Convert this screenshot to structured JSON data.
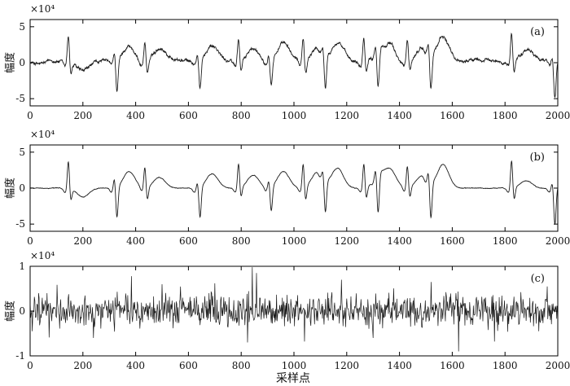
{
  "figure": {
    "xlabel": "采样点",
    "exponent_text": "×10⁴",
    "line_color": "#1a1a1a",
    "axis_color": "#000000"
  },
  "chart_data": [
    {
      "type": "line",
      "panel_tag": "(a)",
      "ylabel": "幅度",
      "x_range": [
        0,
        2000
      ],
      "ylim": [
        -6,
        6
      ],
      "xticks": [
        0,
        200,
        400,
        600,
        800,
        1000,
        1200,
        1400,
        1600,
        1800,
        2000
      ],
      "xtick_labels": [
        "0",
        "200",
        "400",
        "600",
        "800",
        "1000",
        "1200",
        "1400",
        "1600",
        "1800",
        "2000"
      ],
      "yticks": [
        -5,
        0,
        5
      ],
      "ytick_labels": [
        "-5",
        "0",
        "5"
      ],
      "y_scale_note": "×10⁴",
      "noise": 0.25,
      "baseline": [
        [
          0,
          0
        ],
        [
          40,
          -0.2
        ],
        [
          80,
          0.3
        ],
        [
          120,
          0.1
        ],
        [
          200,
          0
        ],
        [
          300,
          0.3
        ],
        [
          400,
          -0.3
        ],
        [
          500,
          0.6
        ],
        [
          600,
          0.2
        ],
        [
          700,
          0.5
        ],
        [
          800,
          0
        ],
        [
          900,
          0.3
        ],
        [
          1000,
          0.4
        ],
        [
          1100,
          -0.2
        ],
        [
          1200,
          0.3
        ],
        [
          1300,
          0.1
        ],
        [
          1400,
          -0.3
        ],
        [
          1500,
          0.5
        ],
        [
          1600,
          0.2
        ],
        [
          1700,
          0.4
        ],
        [
          1800,
          0.1
        ],
        [
          1900,
          0.8
        ],
        [
          2000,
          0
        ]
      ],
      "beats": [
        {
          "x": 145,
          "peak": 4.0,
          "trough": -1.6,
          "wave": -1.2
        },
        {
          "x": 320,
          "peak": 1.5,
          "trough": -4.3,
          "wave": 2.5
        },
        {
          "x": 435,
          "peak": 3.0,
          "trough": -1.8,
          "wave": 1.5
        },
        {
          "x": 635,
          "peak": 1.0,
          "trough": -4.3,
          "wave": 2.0
        },
        {
          "x": 790,
          "peak": 3.5,
          "trough": -1.5,
          "wave": 1.8
        },
        {
          "x": 905,
          "peak": 1.2,
          "trough": -3.5,
          "wave": 2.3
        },
        {
          "x": 1035,
          "peak": 3.5,
          "trough": -2.0,
          "wave": 2.3
        },
        {
          "x": 1110,
          "peak": 1.0,
          "trough": -4.6,
          "wave": 2.8
        },
        {
          "x": 1265,
          "peak": 3.5,
          "trough": -1.7,
          "wave": 1.8
        },
        {
          "x": 1310,
          "peak": 1.2,
          "trough": -5.5,
          "wave": 2.5
        },
        {
          "x": 1430,
          "peak": 3.2,
          "trough": -1.5,
          "wave": 1.7
        },
        {
          "x": 1510,
          "peak": 1.5,
          "trough": -5.0,
          "wave": 3.3
        },
        {
          "x": 1825,
          "peak": 4.0,
          "trough": -1.8,
          "wave": 1.0
        },
        {
          "x": 1980,
          "peak": 1.0,
          "trough": -5.2,
          "wave": 0.8
        }
      ]
    },
    {
      "type": "line",
      "panel_tag": "(b)",
      "ylabel": "幅度",
      "x_range": [
        0,
        2000
      ],
      "ylim": [
        -6,
        6
      ],
      "xticks": [
        0,
        200,
        400,
        600,
        800,
        1000,
        1200,
        1400,
        1600,
        1800,
        2000
      ],
      "xtick_labels": [
        "0",
        "200",
        "400",
        "600",
        "800",
        "1000",
        "1200",
        "1400",
        "1600",
        "1800",
        "2000"
      ],
      "yticks": [
        -5,
        0,
        5
      ],
      "ytick_labels": [
        "-5",
        "0",
        "5"
      ],
      "y_scale_note": "×10⁴",
      "noise": 0.05,
      "baseline": [
        [
          0,
          0
        ],
        [
          2000,
          0
        ]
      ],
      "beats": [
        {
          "x": 145,
          "peak": 4.0,
          "trough": -1.6,
          "wave": -1.2
        },
        {
          "x": 320,
          "peak": 1.5,
          "trough": -4.3,
          "wave": 2.3
        },
        {
          "x": 435,
          "peak": 3.0,
          "trough": -1.8,
          "wave": 1.5
        },
        {
          "x": 635,
          "peak": 1.0,
          "trough": -4.3,
          "wave": 2.0
        },
        {
          "x": 790,
          "peak": 3.5,
          "trough": -1.5,
          "wave": 1.8
        },
        {
          "x": 905,
          "peak": 1.2,
          "trough": -3.5,
          "wave": 2.3
        },
        {
          "x": 1035,
          "peak": 3.5,
          "trough": -2.0,
          "wave": 2.3
        },
        {
          "x": 1110,
          "peak": 1.0,
          "trough": -4.6,
          "wave": 2.8
        },
        {
          "x": 1265,
          "peak": 3.5,
          "trough": -1.7,
          "wave": 1.8
        },
        {
          "x": 1310,
          "peak": 1.2,
          "trough": -5.5,
          "wave": 2.5
        },
        {
          "x": 1430,
          "peak": 3.2,
          "trough": -1.5,
          "wave": 1.7
        },
        {
          "x": 1510,
          "peak": 1.5,
          "trough": -5.0,
          "wave": 3.3
        },
        {
          "x": 1825,
          "peak": 4.0,
          "trough": -1.8,
          "wave": 1.0
        },
        {
          "x": 1980,
          "peak": 1.0,
          "trough": -5.2,
          "wave": 0.8
        }
      ]
    },
    {
      "type": "line",
      "panel_tag": "(c)",
      "ylabel": "幅度",
      "x_range": [
        0,
        2000
      ],
      "ylim": [
        -1,
        1
      ],
      "xticks": [
        0,
        200,
        400,
        600,
        800,
        1000,
        1200,
        1400,
        1600,
        1800,
        2000
      ],
      "xtick_labels": [
        "0",
        "200",
        "400",
        "600",
        "800",
        "1000",
        "1200",
        "1400",
        "1600",
        "1800",
        "2000"
      ],
      "yticks": [
        -1,
        0,
        1
      ],
      "ytick_labels": [
        "-1",
        "0",
        "1"
      ],
      "y_scale_note": "×10⁴",
      "noise_amplitude": 0.35,
      "spikes": [
        {
          "x": 8,
          "y": -0.45
        },
        {
          "x": 240,
          "y": -0.6
        },
        {
          "x": 385,
          "y": 0.78
        },
        {
          "x": 500,
          "y": 0.6
        },
        {
          "x": 700,
          "y": 0.62
        },
        {
          "x": 825,
          "y": -0.7
        },
        {
          "x": 843,
          "y": 0.98
        },
        {
          "x": 858,
          "y": 0.85
        },
        {
          "x": 1040,
          "y": -0.68
        },
        {
          "x": 1180,
          "y": 0.7
        },
        {
          "x": 1300,
          "y": -0.6
        },
        {
          "x": 1520,
          "y": 0.65
        },
        {
          "x": 1625,
          "y": -0.9
        },
        {
          "x": 1760,
          "y": -0.68
        },
        {
          "x": 1960,
          "y": 0.55
        }
      ]
    }
  ]
}
